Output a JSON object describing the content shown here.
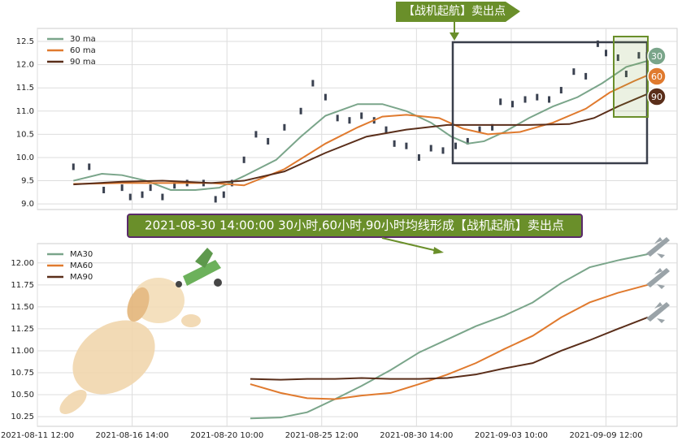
{
  "chart_data": [
    {
      "type": "line",
      "legend": "upper left",
      "grid": true,
      "xlim": [
        0,
        101
      ],
      "xticks": [
        0,
        15,
        30,
        45,
        60,
        75,
        90
      ],
      "ylim": [
        8.88,
        12.78
      ],
      "yticks": [
        {
          "value": 9.0,
          "label": "9.0"
        },
        9.5,
        {
          "value": 10.0,
          "label": "10.0"
        },
        10.5,
        {
          "value": 11.0,
          "label": "11.0"
        },
        11.5,
        {
          "value": 12.0,
          "label": "12.0"
        },
        12.5
      ],
      "banner": "【战机起航】卖出点",
      "end_labels": [
        "30",
        "60",
        "90"
      ],
      "price": {
        "color": "#3a4150",
        "x": [
          5.7,
          8.2,
          10.5,
          13.4,
          14.7,
          16.6,
          17.9,
          19.8,
          21.7,
          23.7,
          26.3,
          28.2,
          29.5,
          30.8,
          32.7,
          34.6,
          36.5,
          39.1,
          41.7,
          43.6,
          45.6,
          47.5,
          49.4,
          51.3,
          53.3,
          55.2,
          56.5,
          58.4,
          60.4,
          62.3,
          64.2,
          66.2,
          68.1,
          70.0,
          72.0,
          73.3,
          75.2,
          77.2,
          79.1,
          81.0,
          82.9,
          84.9,
          86.8,
          88.7,
          90.0,
          91.9,
          93.2,
          95.2,
          96.5
        ],
        "values": [
          9.8,
          9.8,
          9.3,
          9.35,
          9.15,
          9.2,
          9.35,
          9.15,
          9.4,
          9.45,
          9.45,
          9.1,
          9.2,
          9.45,
          9.95,
          10.5,
          10.35,
          10.65,
          11.0,
          11.6,
          11.3,
          10.85,
          10.8,
          10.9,
          10.8,
          10.6,
          10.3,
          10.25,
          10.0,
          10.2,
          10.15,
          10.25,
          10.35,
          10.6,
          10.65,
          11.2,
          11.15,
          11.25,
          11.3,
          11.25,
          11.45,
          11.85,
          11.75,
          12.45,
          12.25,
          12.15,
          11.8,
          12.2,
          12.2
        ]
      },
      "series": [
        {
          "name": "30 ma",
          "color": "#7aa58a",
          "x": [
            5.7,
            10.2,
            13.4,
            17.2,
            21.1,
            25.0,
            28.8,
            32.7,
            37.8,
            41.7,
            45.6,
            50.7,
            54.6,
            58.4,
            62.3,
            65.5,
            68.1,
            70.7,
            73.9,
            77.8,
            81.6,
            85.5,
            89.4,
            93.2,
            97.1
          ],
          "values": [
            9.5,
            9.65,
            9.62,
            9.5,
            9.3,
            9.3,
            9.35,
            9.6,
            9.95,
            10.45,
            10.9,
            11.15,
            11.15,
            11.0,
            10.75,
            10.45,
            10.3,
            10.35,
            10.55,
            10.85,
            11.1,
            11.3,
            11.6,
            11.95,
            12.1
          ]
        },
        {
          "name": "60 ma",
          "color": "#e07a2e",
          "x": [
            5.7,
            13.4,
            19.8,
            27.5,
            32.7,
            39.1,
            45.6,
            50.7,
            54.6,
            58.4,
            63.6,
            67.4,
            71.3,
            76.4,
            81.6,
            86.8,
            90.6,
            94.5,
            97.1
          ],
          "values": [
            9.43,
            9.45,
            9.45,
            9.45,
            9.4,
            9.75,
            10.3,
            10.65,
            10.88,
            10.92,
            10.85,
            10.62,
            10.5,
            10.55,
            10.75,
            11.05,
            11.4,
            11.65,
            11.8
          ]
        },
        {
          "name": "90 ma",
          "color": "#5a2e1a",
          "x": [
            5.7,
            13.4,
            19.8,
            27.5,
            32.7,
            39.1,
            45.6,
            52.1,
            58.4,
            64.9,
            71.3,
            77.8,
            84.2,
            88.1,
            91.9,
            97.1
          ],
          "values": [
            9.42,
            9.48,
            9.5,
            9.45,
            9.5,
            9.7,
            10.1,
            10.45,
            10.6,
            10.7,
            10.7,
            10.7,
            10.72,
            10.85,
            11.1,
            11.4
          ]
        }
      ]
    },
    {
      "type": "line",
      "legend": "upper left",
      "grid": true,
      "annotation": "2021-08-30 14:00:00 30小时,60小时,90小时均线形成【战机起航】卖出点",
      "xlim": [
        0,
        101
      ],
      "xticks": [
        {
          "value": 0,
          "label": "2021-08-11 12:00"
        },
        {
          "value": 15,
          "label": "2021-08-16 14:00"
        },
        {
          "value": 30,
          "label": "2021-08-20 10:00"
        },
        {
          "value": 45,
          "label": "2021-08-25 12:00"
        },
        {
          "value": 60,
          "label": "2021-08-30 14:00"
        },
        {
          "value": 75,
          "label": "2021-09-03 10:00"
        },
        {
          "value": 90,
          "label": "2021-09-09 12:00"
        }
      ],
      "ylim": [
        10.14,
        12.22
      ],
      "yticks": [
        10.25,
        {
          "value": 10.5,
          "label": "10.50"
        },
        10.75,
        {
          "value": 11.0,
          "label": "11.00"
        },
        11.25,
        {
          "value": 11.5,
          "label": "11.50"
        },
        11.75,
        {
          "value": 12.0,
          "label": "12.00"
        }
      ],
      "series": [
        {
          "name": "MA30",
          "color": "#7aa58a",
          "x": [
            33.7,
            38.5,
            42.7,
            47.1,
            51.3,
            55.9,
            60.4,
            64.9,
            69.4,
            73.9,
            78.4,
            82.9,
            87.4,
            91.9,
            96.6
          ],
          "values": [
            10.23,
            10.24,
            10.3,
            10.45,
            10.6,
            10.78,
            10.98,
            11.13,
            11.28,
            11.4,
            11.55,
            11.77,
            11.95,
            12.03,
            12.1
          ]
        },
        {
          "name": "MA60",
          "color": "#e07a2e",
          "x": [
            33.7,
            38.5,
            42.7,
            47.1,
            51.3,
            55.9,
            60.4,
            64.9,
            69.4,
            73.9,
            78.4,
            82.9,
            87.4,
            91.9,
            96.6
          ],
          "values": [
            10.62,
            10.52,
            10.46,
            10.45,
            10.49,
            10.52,
            10.62,
            10.73,
            10.86,
            11.02,
            11.17,
            11.38,
            11.55,
            11.66,
            11.75
          ]
        },
        {
          "name": "MA90",
          "color": "#5a2e1a",
          "x": [
            33.7,
            38.5,
            42.7,
            47.1,
            51.3,
            55.9,
            60.4,
            64.9,
            69.4,
            73.9,
            78.4,
            82.9,
            87.4,
            91.9,
            96.6
          ],
          "values": [
            10.68,
            10.67,
            10.68,
            10.68,
            10.69,
            10.68,
            10.68,
            10.69,
            10.73,
            10.8,
            10.86,
            11.0,
            11.12,
            11.25,
            11.38
          ]
        }
      ]
    }
  ]
}
